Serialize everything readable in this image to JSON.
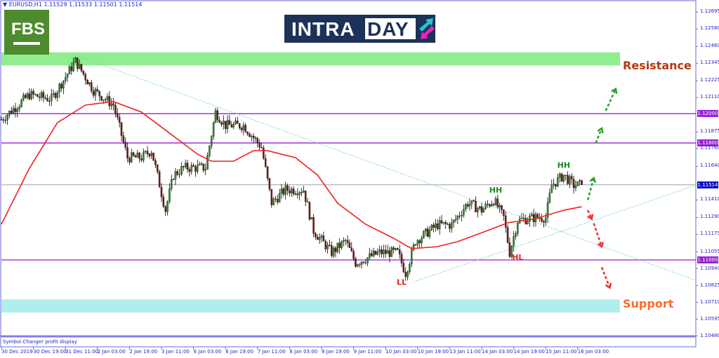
{
  "window": {
    "title": "EURUSD,H1  1.11529 1.11533 1.11501 1.11514"
  },
  "branding": {
    "fbs_logo": "FBS",
    "intraday_logo_part1": "INTRA",
    "intraday_logo_part2": "DAY"
  },
  "indicator_panel": {
    "label": "Symbol Changer profit display"
  },
  "zones": {
    "resistance": {
      "label": "Resistance",
      "from": 1.1233,
      "to": 1.1242,
      "color": "#90ee90",
      "text_color": "#b2390f"
    },
    "support": {
      "label": "Support",
      "from": 1.1064,
      "to": 1.1073,
      "color": "#b0eeee",
      "text_color": "#ff6a2a"
    }
  },
  "levels": [
    {
      "price": 1.12,
      "label": "1.12000",
      "color": "#9b1fd6"
    },
    {
      "price": 1.118,
      "label": "1.11800",
      "color": "#9b1fd6"
    },
    {
      "price": 1.11,
      "label": "1.11000",
      "color": "#9b1fd6"
    }
  ],
  "current_price": {
    "price": 1.11514,
    "label": "1.11514",
    "color": "#0a0ac8"
  },
  "price_axis": [
    "1.12695",
    "1.12580",
    "1.12460",
    "1.12345",
    "1.12225",
    "1.12110",
    "1.11875",
    "1.11760",
    "1.11640",
    "1.11410",
    "1.11290",
    "1.11175",
    "1.11055",
    "1.10940",
    "1.10825",
    "1.10710",
    "1.10595",
    "1.10480"
  ],
  "time_axis": [
    "30 Dec 2019",
    "30 Dec 19:00",
    "31 Dec 11:00",
    "2 Jan 03:00",
    "2 Jan 19:00",
    "3 Jan 11:00",
    "6 Jan 03:00",
    "6 Jan 19:00",
    "7 Jan 11:00",
    "8 Jan 03:00",
    "8 Jan 19:00",
    "9 Jan 11:00",
    "10 Jan 03:00",
    "10 Jan 19:00",
    "13 Jan 11:00",
    "14 Jan 03:00",
    "14 Jan 19:00",
    "15 Jan 11:00",
    "16 Jan 03:00"
  ],
  "annotations": [
    {
      "text": "HH",
      "bar": 247,
      "price": 1.1146,
      "color": "#1a8a1a"
    },
    {
      "text": "HH",
      "bar": 281,
      "price": 1.1163,
      "color": "#1a8a1a"
    },
    {
      "text": "HL",
      "bar": 258,
      "price": 1.11,
      "color": "#e62020"
    },
    {
      "text": "LL",
      "bar": 200,
      "price": 1.1083,
      "color": "#e62020"
    }
  ],
  "chart_data": {
    "type": "candlestick",
    "symbol": "EURUSD",
    "timeframe": "H1",
    "ohlc_last": {
      "open": 1.11529,
      "high": 1.11533,
      "low": 1.11501,
      "close": 1.11514
    },
    "close_keypoints": [
      [
        0,
        1.1196
      ],
      [
        14,
        1.1213
      ],
      [
        25,
        1.121
      ],
      [
        37,
        1.1236
      ],
      [
        46,
        1.1216
      ],
      [
        56,
        1.1206
      ],
      [
        63,
        1.117
      ],
      [
        70,
        1.117
      ],
      [
        75,
        1.1175
      ],
      [
        82,
        1.1134
      ],
      [
        86,
        1.1158
      ],
      [
        91,
        1.1163
      ],
      [
        102,
        1.1163
      ],
      [
        107,
        1.1201
      ],
      [
        112,
        1.1192
      ],
      [
        121,
        1.1192
      ],
      [
        130,
        1.1177
      ],
      [
        135,
        1.1139
      ],
      [
        142,
        1.1148
      ],
      [
        151,
        1.1148
      ],
      [
        156,
        1.112
      ],
      [
        165,
        1.1105
      ],
      [
        172,
        1.1113
      ],
      [
        177,
        1.1098
      ],
      [
        189,
        1.1105
      ],
      [
        198,
        1.1105
      ],
      [
        202,
        1.1091
      ],
      [
        207,
        1.1113
      ],
      [
        218,
        1.1124
      ],
      [
        225,
        1.1124
      ],
      [
        233,
        1.1139
      ],
      [
        240,
        1.1134
      ],
      [
        246,
        1.1141
      ],
      [
        251,
        1.1129
      ],
      [
        254,
        1.1105
      ],
      [
        258,
        1.1127
      ],
      [
        267,
        1.1129
      ],
      [
        272,
        1.1129
      ],
      [
        275,
        1.1151
      ],
      [
        281,
        1.1158
      ],
      [
        286,
        1.1151
      ],
      [
        290,
        1.11514
      ]
    ],
    "moving_average": [
      [
        0,
        1.11244
      ],
      [
        14,
        1.11627
      ],
      [
        28,
        1.11939
      ],
      [
        42,
        1.12059
      ],
      [
        56,
        1.12083
      ],
      [
        70,
        1.12011
      ],
      [
        84,
        1.11867
      ],
      [
        98,
        1.11723
      ],
      [
        105,
        1.11675
      ],
      [
        116,
        1.11675
      ],
      [
        126,
        1.11747
      ],
      [
        133,
        1.11747
      ],
      [
        147,
        1.11699
      ],
      [
        158,
        1.1158
      ],
      [
        168,
        1.11388
      ],
      [
        182,
        1.11244
      ],
      [
        196,
        1.11148
      ],
      [
        205,
        1.11077
      ],
      [
        218,
        1.11091
      ],
      [
        228,
        1.11125
      ],
      [
        242,
        1.11196
      ],
      [
        253,
        1.11254
      ],
      [
        267,
        1.11282
      ],
      [
        281,
        1.1134
      ],
      [
        290,
        1.11364
      ]
    ],
    "trendlines": [
      {
        "from": [
          37,
          1.124
        ],
        "to": [
          347,
          1.1086
        ],
        "color": "#6fcfcf"
      },
      {
        "from": [
          206,
          1.1085
        ],
        "to": [
          347,
          1.1151
        ],
        "color": "#6fcfcf"
      }
    ],
    "bullish_arrows": [
      [
        [
          293,
          1.1141
        ],
        [
          296,
          1.1156
        ]
      ],
      [
        [
          297,
          1.118
        ],
        [
          300,
          1.119
        ]
      ],
      [
        [
          302,
          1.1202
        ],
        [
          307,
          1.1217
        ]
      ]
    ],
    "bearish_arrows": [
      [
        [
          293,
          1.1134
        ],
        [
          295,
          1.1128
        ]
      ],
      [
        [
          296,
          1.1125
        ],
        [
          300,
          1.1109
        ]
      ],
      [
        [
          300,
          1.1095
        ],
        [
          304,
          1.1081
        ]
      ]
    ],
    "colors": {
      "bull": "#1f9a1f",
      "bear": "#8b1010",
      "ma": "#ee2020",
      "bull_arrow": "#2aa02a",
      "bear_arrow": "#ee3030"
    }
  }
}
